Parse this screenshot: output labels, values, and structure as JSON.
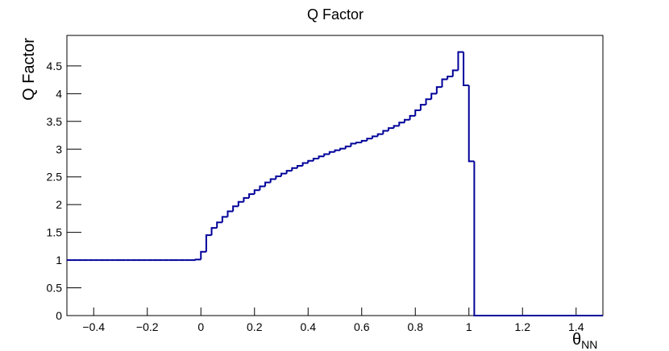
{
  "chart_data": {
    "type": "histogram",
    "title": "Q Factor",
    "y_label": "Q Factor",
    "x_label": {
      "symbol": "θ",
      "subscript": "NN"
    },
    "color": "#000099",
    "bins": [
      -0.5,
      -0.48,
      -0.46,
      -0.44,
      -0.42,
      -0.4,
      -0.38,
      -0.36,
      -0.34,
      -0.32,
      -0.3,
      -0.28,
      -0.26,
      -0.24,
      -0.22,
      -0.2,
      -0.18,
      -0.16,
      -0.14,
      -0.12,
      -0.1,
      -0.08,
      -0.06,
      -0.04,
      -0.02,
      0,
      0.02,
      0.04,
      0.06,
      0.08,
      0.1,
      0.12,
      0.14,
      0.16,
      0.18,
      0.2,
      0.22,
      0.24,
      0.26,
      0.28,
      0.3,
      0.32,
      0.34,
      0.36,
      0.38,
      0.4,
      0.42,
      0.44,
      0.46,
      0.48,
      0.5,
      0.52,
      0.54,
      0.56,
      0.58,
      0.6,
      0.62,
      0.64,
      0.66,
      0.68,
      0.7,
      0.72,
      0.74,
      0.76,
      0.78,
      0.8,
      0.82,
      0.84,
      0.86,
      0.88,
      0.9,
      0.92,
      0.94,
      0.96,
      0.98,
      1,
      1.02,
      1.04,
      1.06,
      1.08,
      1.1,
      1.12,
      1.14,
      1.16,
      1.18,
      1.2,
      1.22,
      1.24,
      1.26,
      1.28,
      1.3,
      1.32,
      1.34,
      1.36,
      1.38,
      1.4,
      1.42,
      1.44,
      1.46,
      1.48,
      1.5
    ],
    "values": [
      1,
      1,
      1,
      1,
      1,
      1,
      1,
      1,
      1,
      1,
      1,
      1,
      1,
      1,
      1,
      1,
      1,
      1,
      1,
      1,
      1,
      1,
      1,
      1,
      1.01,
      1.15,
      1.45,
      1.58,
      1.68,
      1.78,
      1.88,
      1.97,
      2.05,
      2.12,
      2.19,
      2.26,
      2.33,
      2.4,
      2.46,
      2.51,
      2.56,
      2.61,
      2.66,
      2.7,
      2.75,
      2.79,
      2.83,
      2.87,
      2.91,
      2.95,
      2.98,
      3.01,
      3.05,
      3.1,
      3.12,
      3.15,
      3.19,
      3.23,
      3.27,
      3.33,
      3.38,
      3.42,
      3.48,
      3.53,
      3.6,
      3.7,
      3.8,
      3.9,
      4,
      4.12,
      4.26,
      4.31,
      4.42,
      4.75,
      4.15,
      2.78,
      0,
      0,
      0,
      0,
      0,
      0,
      0,
      0,
      0,
      0,
      0,
      0,
      0,
      0,
      0,
      0,
      0,
      0,
      0,
      0,
      0,
      0,
      0,
      0
    ],
    "xlim": [
      -0.5,
      1.5
    ],
    "ylim": [
      0,
      5.05
    ],
    "xticks": [
      {
        "value": -0.4,
        "label": "−0.4"
      },
      {
        "value": -0.2,
        "label": "−0.2"
      },
      0,
      0.2,
      0.4,
      0.6,
      0.8,
      1,
      1.2,
      1.4
    ],
    "yticks": [
      0,
      0.5,
      1,
      1.5,
      2,
      2.5,
      3,
      3.5,
      4,
      4.5
    ]
  }
}
